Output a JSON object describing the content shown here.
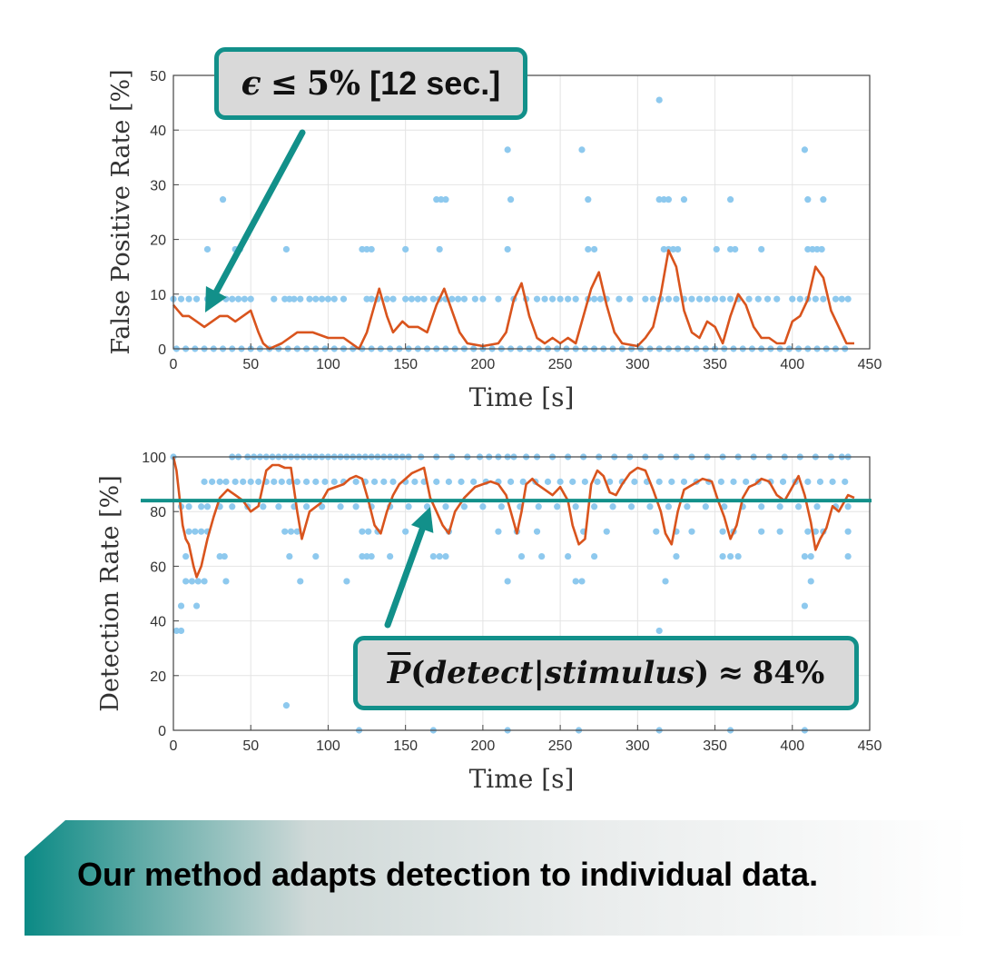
{
  "colors": {
    "scatter": "#8ec9ee",
    "line": "#d9541d",
    "accent": "#12908a",
    "grid": "#e4e4e4",
    "axis": "#444444"
  },
  "chart_data": [
    {
      "type": "scatter",
      "xlabel": "Time [s]",
      "ylabel": "False Positive Rate [%]",
      "xlim": [
        0,
        450
      ],
      "ylim": [
        0,
        50
      ],
      "xticks": [
        "0",
        "50",
        "100",
        "150",
        "200",
        "250",
        "300",
        "350",
        "400",
        "450"
      ],
      "yticks": [
        "0",
        "10",
        "20",
        "30",
        "40",
        "50"
      ],
      "grid": true,
      "scatter_levels": [
        {
          "y": 0,
          "x": [
            2,
            8,
            14,
            20,
            26,
            32,
            38,
            44,
            50,
            56,
            62,
            68,
            74,
            80,
            86,
            92,
            98,
            104,
            110,
            116,
            122,
            128,
            134,
            140,
            146,
            152,
            158,
            164,
            170,
            176,
            182,
            188,
            194,
            200,
            206,
            212,
            218,
            224,
            230,
            236,
            242,
            248,
            254,
            260,
            266,
            272,
            278,
            284,
            290,
            296,
            302,
            308,
            314,
            320,
            326,
            332,
            338,
            344,
            350,
            356,
            362,
            368,
            374,
            380,
            386,
            392,
            398,
            404,
            410,
            416,
            422,
            428,
            434
          ]
        },
        {
          "y": 9.1,
          "x": [
            0,
            5,
            10,
            15,
            22,
            28,
            34,
            38,
            42,
            46,
            50,
            65,
            72,
            75,
            78,
            82,
            88,
            92,
            96,
            100,
            104,
            110,
            125,
            128,
            132,
            138,
            142,
            150,
            154,
            158,
            162,
            168,
            172,
            176,
            180,
            184,
            188,
            195,
            200,
            210,
            220,
            228,
            235,
            240,
            245,
            250,
            255,
            260,
            268,
            272,
            276,
            280,
            288,
            295,
            305,
            310,
            315,
            320,
            325,
            330,
            335,
            340,
            345,
            350,
            355,
            360,
            365,
            372,
            378,
            384,
            390,
            400,
            405,
            410,
            415,
            420,
            428,
            432,
            436
          ]
        },
        {
          "y": 18.2,
          "x": [
            22,
            40,
            43,
            73,
            122,
            125,
            128,
            150,
            172,
            216,
            268,
            272,
            317,
            320,
            323,
            326,
            351,
            360,
            363,
            380,
            410,
            413,
            416,
            419
          ]
        },
        {
          "y": 27.3,
          "x": [
            32,
            170,
            173,
            176,
            218,
            268,
            314,
            317,
            320,
            330,
            360,
            410,
            420
          ]
        },
        {
          "y": 36.4,
          "x": [
            216,
            264,
            408
          ]
        },
        {
          "y": 45.5,
          "x": [
            314
          ]
        }
      ],
      "line": {
        "x": [
          0,
          3,
          6,
          10,
          15,
          20,
          25,
          30,
          35,
          40,
          45,
          50,
          55,
          58,
          62,
          70,
          80,
          90,
          100,
          110,
          115,
          120,
          125,
          130,
          133,
          138,
          142,
          148,
          152,
          158,
          164,
          170,
          175,
          180,
          185,
          190,
          200,
          210,
          215,
          220,
          225,
          230,
          235,
          240,
          245,
          250,
          255,
          260,
          265,
          270,
          275,
          280,
          285,
          290,
          300,
          305,
          310,
          315,
          320,
          325,
          330,
          335,
          340,
          345,
          350,
          355,
          360,
          365,
          370,
          375,
          380,
          385,
          390,
          395,
          400,
          405,
          410,
          415,
          420,
          425,
          430,
          435,
          440
        ],
        "y": [
          8,
          7,
          6,
          6,
          5,
          4,
          5,
          6,
          6,
          5,
          6,
          7,
          3,
          1,
          0,
          1,
          3,
          3,
          2,
          2,
          1,
          0,
          3,
          8,
          11,
          6,
          3,
          5,
          4,
          4,
          3,
          8,
          11,
          7,
          3,
          1,
          0.5,
          1,
          3,
          9,
          12,
          6,
          2,
          1,
          2,
          1,
          2,
          1,
          6,
          11,
          14,
          8,
          3,
          1,
          0.5,
          2,
          4,
          10,
          18,
          15,
          7,
          3,
          2,
          5,
          4,
          1,
          6,
          10,
          8,
          4,
          2,
          2,
          1,
          1,
          5,
          6,
          9,
          15,
          13,
          7,
          4,
          1,
          1
        ]
      }
    },
    {
      "type": "scatter",
      "xlabel": "Time [s]",
      "ylabel": "Detection Rate [%]",
      "xlim": [
        0,
        450
      ],
      "ylim": [
        0,
        100
      ],
      "xticks": [
        "0",
        "50",
        "100",
        "150",
        "200",
        "250",
        "300",
        "350",
        "400",
        "450"
      ],
      "yticks": [
        "0",
        "20",
        "40",
        "60",
        "80",
        "100"
      ],
      "grid": true,
      "reference_line_y": 84,
      "scatter_levels": [
        {
          "y": 100,
          "x": [
            0,
            38,
            42,
            48,
            52,
            56,
            60,
            64,
            68,
            72,
            76,
            80,
            84,
            88,
            92,
            96,
            100,
            104,
            108,
            112,
            116,
            120,
            124,
            128,
            132,
            136,
            140,
            144,
            148,
            152,
            160,
            170,
            180,
            190,
            198,
            204,
            210,
            216,
            220,
            228,
            235,
            245,
            255,
            265,
            275,
            285,
            295,
            305,
            315,
            325,
            335,
            345,
            355,
            365,
            375,
            385,
            395,
            405,
            415,
            425,
            432,
            436
          ]
        },
        {
          "y": 90.9,
          "x": [
            20,
            25,
            30,
            34,
            40,
            45,
            50,
            55,
            60,
            65,
            70,
            75,
            80,
            86,
            92,
            98,
            104,
            110,
            118,
            124,
            130,
            136,
            142,
            150,
            156,
            162,
            170,
            178,
            186,
            194,
            202,
            210,
            218,
            226,
            234,
            242,
            250,
            258,
            266,
            274,
            282,
            290,
            298,
            306,
            314,
            322,
            330,
            338,
            346,
            354,
            362,
            370,
            378,
            386,
            394,
            402,
            410,
            418,
            426,
            434
          ]
        },
        {
          "y": 81.8,
          "x": [
            5,
            10,
            18,
            22,
            30,
            38,
            48,
            58,
            68,
            78,
            86,
            96,
            108,
            118,
            128,
            140,
            152,
            164,
            176,
            188,
            200,
            212,
            224,
            236,
            248,
            260,
            272,
            284,
            296,
            308,
            320,
            332,
            344,
            356,
            368,
            380,
            392,
            404,
            416,
            428,
            436
          ]
        },
        {
          "y": 72.7,
          "x": [
            10,
            14,
            18,
            22,
            72,
            76,
            80,
            122,
            126,
            132,
            150,
            178,
            210,
            222,
            235,
            265,
            280,
            312,
            325,
            335,
            355,
            362,
            380,
            392,
            410,
            415,
            420,
            436
          ]
        },
        {
          "y": 63.6,
          "x": [
            8,
            30,
            33,
            75,
            92,
            122,
            125,
            128,
            140,
            168,
            172,
            176,
            225,
            238,
            255,
            272,
            325,
            355,
            360,
            365,
            408,
            412,
            436
          ]
        },
        {
          "y": 54.5,
          "x": [
            8,
            12,
            16,
            20,
            34,
            82,
            112,
            216,
            260,
            264,
            318,
            412
          ]
        },
        {
          "y": 45.5,
          "x": [
            5,
            15,
            408
          ]
        },
        {
          "y": 36.4,
          "x": [
            2,
            5,
            314
          ]
        },
        {
          "y": 9.1,
          "x": [
            73
          ]
        },
        {
          "y": 0,
          "x": [
            120,
            168,
            216,
            262,
            314,
            360,
            408
          ]
        }
      ],
      "line": {
        "x": [
          0,
          2,
          4,
          6,
          8,
          10,
          13,
          15,
          18,
          22,
          26,
          30,
          35,
          40,
          45,
          50,
          55,
          60,
          64,
          68,
          72,
          76,
          80,
          83,
          88,
          95,
          100,
          105,
          110,
          114,
          118,
          122,
          126,
          130,
          134,
          138,
          142,
          146,
          150,
          154,
          158,
          162,
          166,
          170,
          174,
          178,
          182,
          188,
          195,
          200,
          205,
          210,
          215,
          218,
          222,
          225,
          228,
          232,
          235,
          240,
          245,
          250,
          255,
          258,
          262,
          266,
          270,
          274,
          278,
          282,
          286,
          290,
          295,
          300,
          305,
          310,
          315,
          318,
          322,
          326,
          330,
          336,
          342,
          348,
          352,
          356,
          360,
          364,
          368,
          372,
          376,
          380,
          385,
          390,
          395,
          400,
          404,
          408,
          412,
          415,
          418,
          422,
          426,
          430,
          436,
          440
        ],
        "y": [
          100,
          95,
          85,
          75,
          70,
          68,
          60,
          56,
          60,
          70,
          78,
          85,
          88,
          86,
          84,
          80,
          82,
          95,
          97,
          97,
          96,
          96,
          80,
          70,
          80,
          83,
          88,
          89,
          90,
          92,
          93,
          92,
          84,
          75,
          72,
          80,
          86,
          90,
          92,
          94,
          95,
          96,
          85,
          80,
          75,
          72,
          80,
          85,
          89,
          90,
          91,
          90,
          86,
          80,
          72,
          80,
          90,
          92,
          90,
          88,
          86,
          89,
          84,
          75,
          68,
          70,
          90,
          95,
          93,
          87,
          86,
          90,
          94,
          96,
          95,
          88,
          80,
          72,
          68,
          80,
          88,
          90,
          92,
          91,
          84,
          78,
          70,
          75,
          85,
          89,
          90,
          92,
          91,
          86,
          84,
          89,
          93,
          86,
          76,
          66,
          70,
          74,
          82,
          80,
          86,
          85
        ]
      }
    }
  ],
  "callouts": {
    "top": {
      "epsilon": "ϵ",
      "le": "≤",
      "value": "5%",
      "bracket": "[12 sec.]"
    },
    "bottom": {
      "P": "P",
      "open": "(",
      "detect": "detect",
      "bar": "|",
      "stimulus": "stimulus",
      "close": ")",
      "approx": "≈",
      "value": "84%"
    }
  },
  "banner": {
    "text": "Our method adapts detection to individual data."
  }
}
